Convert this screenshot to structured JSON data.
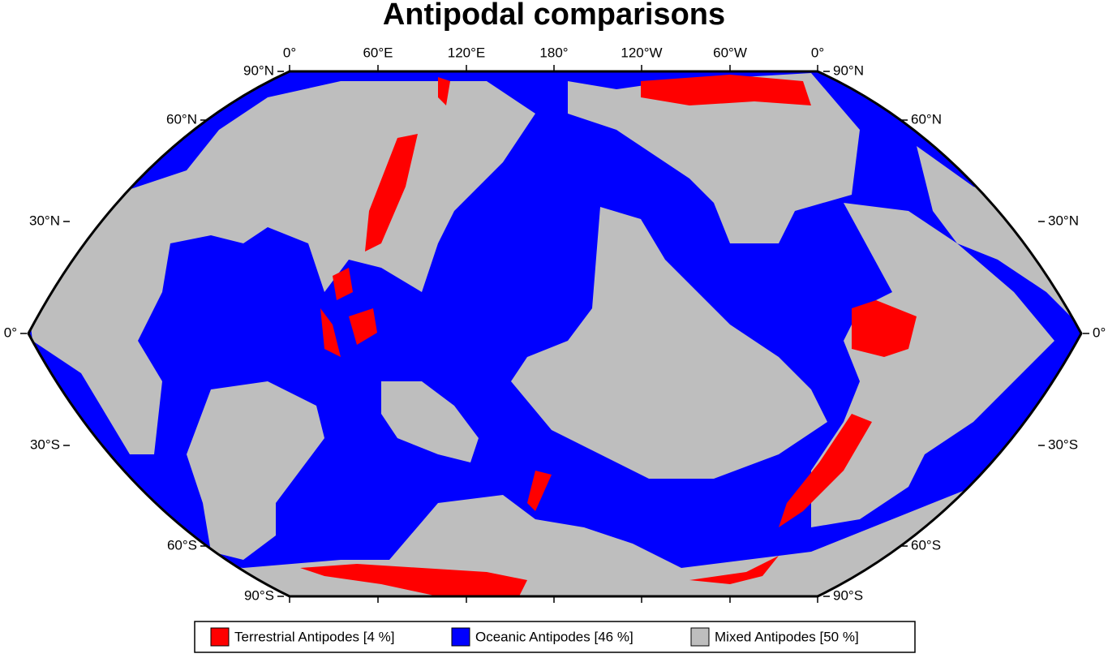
{
  "title": "Antipodal comparisons",
  "longitude_labels": [
    "0°",
    "60°E",
    "120°E",
    "180°",
    "120°W",
    "60°W",
    "0°"
  ],
  "latitude_labels": [
    "90°N",
    "60°N",
    "30°N",
    "0°",
    "30°S",
    "60°S",
    "90°S"
  ],
  "legend": {
    "items": [
      {
        "label": "Terrestrial Antipodes [4 %]",
        "color": "#ff0000"
      },
      {
        "label": "Oceanic Antipodes [46 %]",
        "color": "#0000ff"
      },
      {
        "label": "Mixed Antipodes [50 %]",
        "color": "#bebebe"
      }
    ]
  }
}
